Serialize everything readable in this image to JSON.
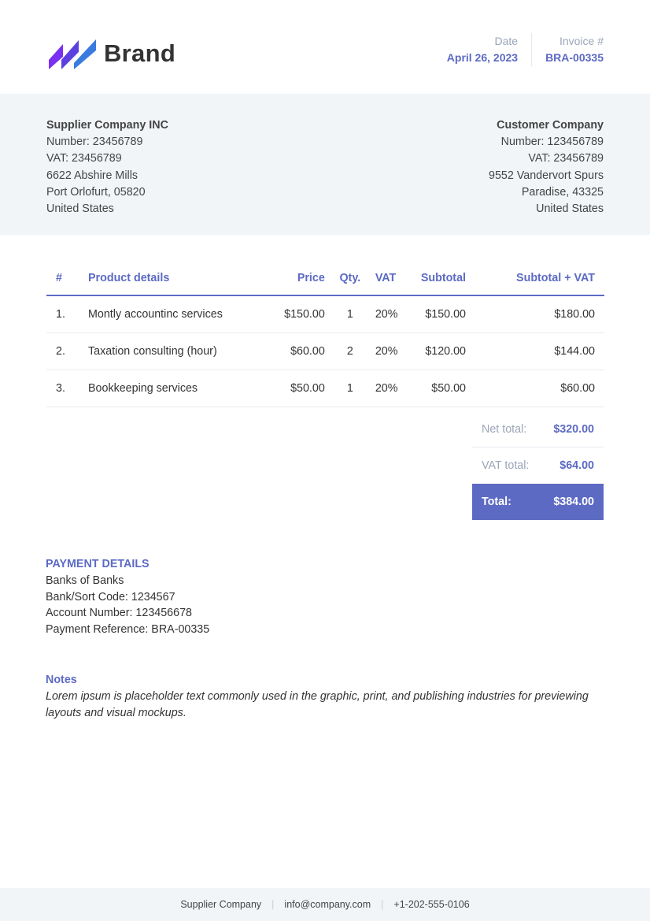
{
  "brand": {
    "name": "Brand",
    "colors": [
      "#7b2ff0",
      "#5b3fe0",
      "#3a7be0"
    ]
  },
  "accent": "#5c6ac4",
  "meta": {
    "date_label": "Date",
    "date": "April 26, 2023",
    "invoice_label": "Invoice #",
    "invoice": "BRA-00335"
  },
  "supplier": {
    "name": "Supplier Company INC",
    "number": "Number: 23456789",
    "vat": "VAT: 23456789",
    "address1": "6622 Abshire Mills",
    "address2": "Port Orlofurt, 05820",
    "country": "United States"
  },
  "customer": {
    "name": "Customer Company",
    "number": "Number: 123456789",
    "vat": "VAT: 23456789",
    "address1": "9552 Vandervort Spurs",
    "address2": "Paradise, 43325",
    "country": "United States"
  },
  "table": {
    "headers": [
      "#",
      "Product details",
      "Price",
      "Qty.",
      "VAT",
      "Subtotal",
      "Subtotal + VAT"
    ],
    "rows": [
      [
        "1.",
        "Montly accountinc services",
        "$150.00",
        "1",
        "20%",
        "$150.00",
        "$180.00"
      ],
      [
        "2.",
        "Taxation consulting (hour)",
        "$60.00",
        "2",
        "20%",
        "$120.00",
        "$144.00"
      ],
      [
        "3.",
        "Bookkeeping services",
        "$50.00",
        "1",
        "20%",
        "$50.00",
        "$60.00"
      ]
    ]
  },
  "totals": {
    "net_label": "Net total:",
    "net": "$320.00",
    "vat_label": "VAT total:",
    "vat": "$64.00",
    "total_label": "Total:",
    "total": "$384.00"
  },
  "payment": {
    "title": "PAYMENT DETAILS",
    "bank": "Banks of Banks",
    "sort": "Bank/Sort Code: 1234567",
    "account": "Account Number: 123456678",
    "reference": "Payment Reference: BRA-00335"
  },
  "notes": {
    "title": "Notes",
    "text": "Lorem ipsum is placeholder text commonly used in the graphic, print, and publishing industries for previewing layouts and visual mockups."
  },
  "footer": {
    "company": "Supplier Company",
    "email": "info@company.com",
    "phone": "+1-202-555-0106"
  }
}
